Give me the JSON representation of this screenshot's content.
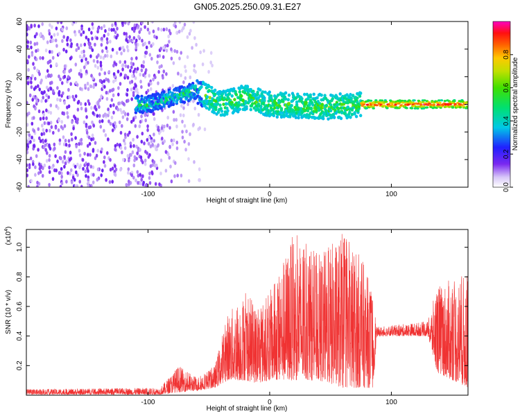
{
  "chart_data": [
    {
      "type": "heatmap",
      "title": "GN05.2025.250.09.31.E27",
      "xlabel": "Height of straight line (km)",
      "ylabel": "Frequency (Hz)",
      "xlim": [
        -200,
        163
      ],
      "ylim": [
        -60,
        60
      ],
      "xticks": [
        -100,
        0,
        100
      ],
      "yticks": [
        -60,
        -40,
        -20,
        0,
        20,
        40,
        60
      ],
      "colorbar": {
        "label": "Normalized spectral amplitude",
        "range": [
          0.0,
          1.0
        ],
        "ticks": [
          "0.0",
          "0.2",
          "0.4",
          "0.6",
          "0.8"
        ]
      },
      "description_features": {
        "noise_region_x": [
          -200,
          -55
        ],
        "signal_band_center_hz": [
          {
            "x": -100,
            "f": 0
          },
          {
            "x": -60,
            "f": 10
          },
          {
            "x": -40,
            "f": 0
          },
          {
            "x": -20,
            "f": 5
          },
          {
            "x": 0,
            "f": 0
          },
          {
            "x": 50,
            "f": -2
          },
          {
            "x": 80,
            "f": 0
          },
          {
            "x": 163,
            "f": 0
          }
        ],
        "peak_amplitude_region_x": [
          75,
          163
        ]
      }
    },
    {
      "type": "line",
      "xlabel": "Height of straight line (km)",
      "ylabel": "SNR (10 * v/v)",
      "y_scale_label": "(x10",
      "y_scale_exponent": "4",
      "xlim": [
        -200,
        163
      ],
      "ylim": [
        0,
        1.12
      ],
      "xticks": [
        -100,
        0,
        100
      ],
      "yticks": [
        0.2,
        0.4,
        0.6,
        0.8,
        1.0
      ],
      "color": "#f03232",
      "envelope": [
        {
          "x": -200,
          "lo": 0.005,
          "hi": 0.04
        },
        {
          "x": -90,
          "lo": 0.005,
          "hi": 0.05
        },
        {
          "x": -75,
          "lo": 0.02,
          "hi": 0.2
        },
        {
          "x": -60,
          "lo": 0.03,
          "hi": 0.12
        },
        {
          "x": -45,
          "lo": 0.05,
          "hi": 0.2
        },
        {
          "x": -35,
          "lo": 0.1,
          "hi": 0.55
        },
        {
          "x": -20,
          "lo": 0.1,
          "hi": 0.7
        },
        {
          "x": -10,
          "lo": 0.08,
          "hi": 0.6
        },
        {
          "x": 0,
          "lo": 0.1,
          "hi": 0.7
        },
        {
          "x": 20,
          "lo": 0.1,
          "hi": 1.1
        },
        {
          "x": 40,
          "lo": 0.1,
          "hi": 0.95
        },
        {
          "x": 60,
          "lo": 0.05,
          "hi": 1.1
        },
        {
          "x": 75,
          "lo": 0.05,
          "hi": 0.95
        },
        {
          "x": 85,
          "lo": 0.05,
          "hi": 0.7
        },
        {
          "x": 88,
          "lo": 0.4,
          "hi": 0.46
        },
        {
          "x": 130,
          "lo": 0.4,
          "hi": 0.5
        },
        {
          "x": 138,
          "lo": 0.15,
          "hi": 0.75
        },
        {
          "x": 163,
          "lo": 0.05,
          "hi": 0.82
        }
      ]
    }
  ]
}
